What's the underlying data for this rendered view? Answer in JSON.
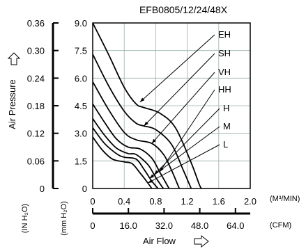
{
  "chart_data": {
    "type": "line",
    "title": "EFB0805/12/24/48X",
    "xlabel": "Air Flow",
    "ylabel": "Air Pressure",
    "x_unit": "(M³/MIN)",
    "x2_unit": "(CFM)",
    "y_unit": "(IN H₂O)",
    "y2_unit": "(mm H₂O)",
    "xlim": [
      0,
      2.0
    ],
    "ylim": [
      0,
      9.0
    ],
    "x_ticks": [
      "0",
      "0.4",
      "0.8",
      "1.2",
      "1.6",
      "2.0"
    ],
    "x2_ticks": [
      "0",
      "16.0",
      "32.0",
      "48.0",
      "64.0"
    ],
    "y_ticks": [
      "0",
      "1.5",
      "3.0",
      "4.5",
      "6.0",
      "7.5",
      "9.0"
    ],
    "y2_ticks": [
      "0",
      "0.06",
      "0.12",
      "0.18",
      "0.24",
      "0.30",
      "0.36"
    ],
    "grid": true,
    "series": [
      {
        "name": "EH",
        "points": [
          [
            0,
            9.0
          ],
          [
            0.2,
            7.3
          ],
          [
            0.4,
            5.5
          ],
          [
            0.55,
            4.6
          ],
          [
            0.65,
            4.4
          ],
          [
            0.85,
            4.1
          ],
          [
            1.05,
            3.3
          ],
          [
            1.25,
            1.4
          ],
          [
            1.35,
            0.25
          ],
          [
            1.38,
            0
          ]
        ]
      },
      {
        "name": "SH",
        "points": [
          [
            0,
            7.3
          ],
          [
            0.2,
            5.6
          ],
          [
            0.4,
            4.2
          ],
          [
            0.55,
            3.55
          ],
          [
            0.65,
            3.4
          ],
          [
            0.8,
            3.2
          ],
          [
            1.0,
            2.4
          ],
          [
            1.15,
            1.0
          ],
          [
            1.23,
            0.2
          ],
          [
            1.25,
            0
          ]
        ]
      },
      {
        "name": "VH",
        "points": [
          [
            0,
            5.8
          ],
          [
            0.2,
            4.3
          ],
          [
            0.4,
            3.05
          ],
          [
            0.55,
            2.65
          ],
          [
            0.75,
            2.45
          ],
          [
            0.9,
            1.85
          ],
          [
            1.0,
            1.0
          ],
          [
            1.08,
            0.2
          ],
          [
            1.1,
            0
          ]
        ]
      },
      {
        "name": "HH",
        "points": [
          [
            0,
            4.6
          ],
          [
            0.15,
            3.6
          ],
          [
            0.3,
            2.7
          ],
          [
            0.45,
            2.25
          ],
          [
            0.6,
            2.15
          ],
          [
            0.75,
            1.65
          ],
          [
            0.85,
            0.9
          ],
          [
            0.95,
            0.15
          ],
          [
            0.97,
            0
          ]
        ]
      },
      {
        "name": "H",
        "points": [
          [
            0,
            3.8
          ],
          [
            0.15,
            2.9
          ],
          [
            0.3,
            2.2
          ],
          [
            0.45,
            1.9
          ],
          [
            0.55,
            1.85
          ],
          [
            0.7,
            1.3
          ],
          [
            0.8,
            0.6
          ],
          [
            0.88,
            0.1
          ],
          [
            0.9,
            0
          ]
        ]
      },
      {
        "name": "M",
        "points": [
          [
            0,
            3.3
          ],
          [
            0.15,
            2.45
          ],
          [
            0.3,
            1.9
          ],
          [
            0.4,
            1.7
          ],
          [
            0.55,
            1.6
          ],
          [
            0.65,
            1.05
          ],
          [
            0.75,
            0.4
          ],
          [
            0.83,
            0
          ]
        ]
      },
      {
        "name": "L",
        "points": [
          [
            0,
            2.8
          ],
          [
            0.12,
            2.1
          ],
          [
            0.25,
            1.6
          ],
          [
            0.4,
            1.45
          ],
          [
            0.5,
            1.35
          ],
          [
            0.6,
            0.85
          ],
          [
            0.7,
            0.3
          ],
          [
            0.75,
            0
          ]
        ]
      }
    ]
  },
  "colors": {
    "line": "#000000",
    "grid": "#9ab0aa",
    "background": "#ffffff"
  },
  "icons": {
    "arrow_icon": "outline-arrow-icon"
  }
}
